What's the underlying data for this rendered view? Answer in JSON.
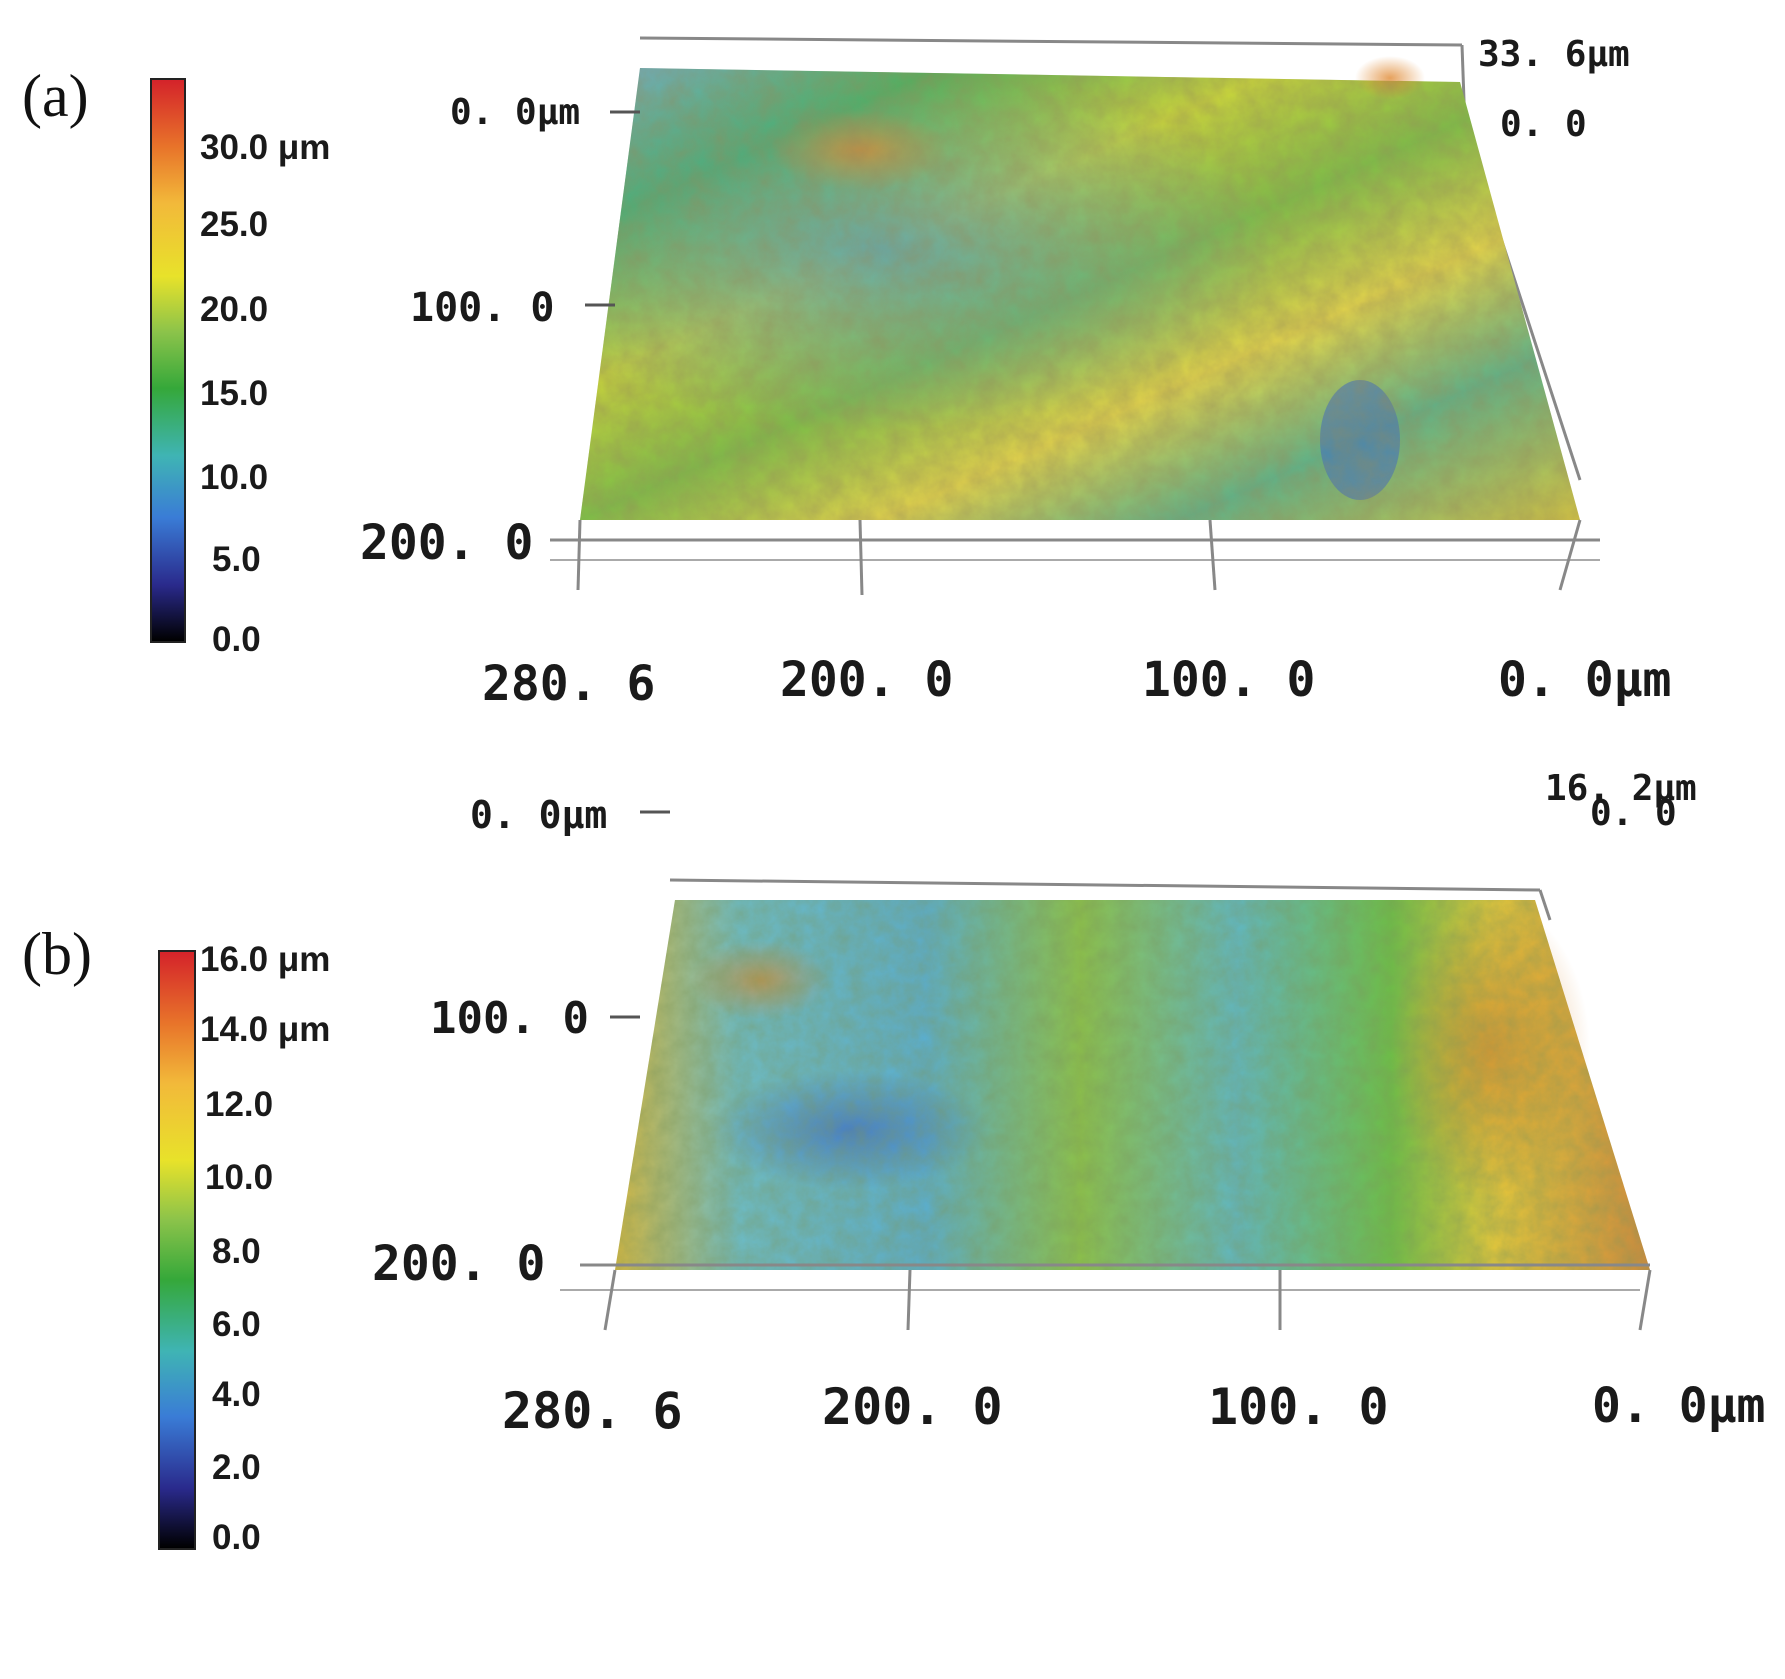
{
  "panels": [
    {
      "letter": "(a)",
      "colorbar": {
        "labels": [
          "30.0 μm",
          "25.0",
          "20.0",
          "15.0",
          "10.0",
          "5.0",
          "0.0"
        ],
        "min": 0.0,
        "max": 33.6
      },
      "z_axis": {
        "top": "33. 6μm",
        "bottom": "0. 0"
      },
      "y_axis": [
        "0. 0μm",
        "100. 0",
        "200. 0"
      ],
      "x_axis": [
        "280. 6",
        "200. 0",
        "100. 0",
        "0. 0μm"
      ],
      "surface_colors": {
        "low": "#3a7cd6",
        "mid": "#35a83a",
        "high": "#e8e22a",
        "peak": "#d4742a"
      }
    },
    {
      "letter": "(b)",
      "colorbar": {
        "labels": [
          "16.0 μm",
          "14.0 μm",
          "12.0",
          "10.0",
          "8.0",
          "6.0",
          "4.0",
          "2.0",
          "0.0"
        ],
        "min": 0.0,
        "max": 16.2
      },
      "z_axis": {
        "top": "16. 2μm",
        "bottom": "0. 0"
      },
      "y_axis": [
        "0. 0μm",
        "100. 0",
        "200. 0"
      ],
      "x_axis": [
        "280. 6",
        "200. 0",
        "100. 0",
        "0. 0μm"
      ],
      "surface_colors": {
        "low": "#4aa8d8",
        "mid": "#4cb045",
        "high": "#e0d43a",
        "peak": "#d4742a"
      }
    }
  ]
}
